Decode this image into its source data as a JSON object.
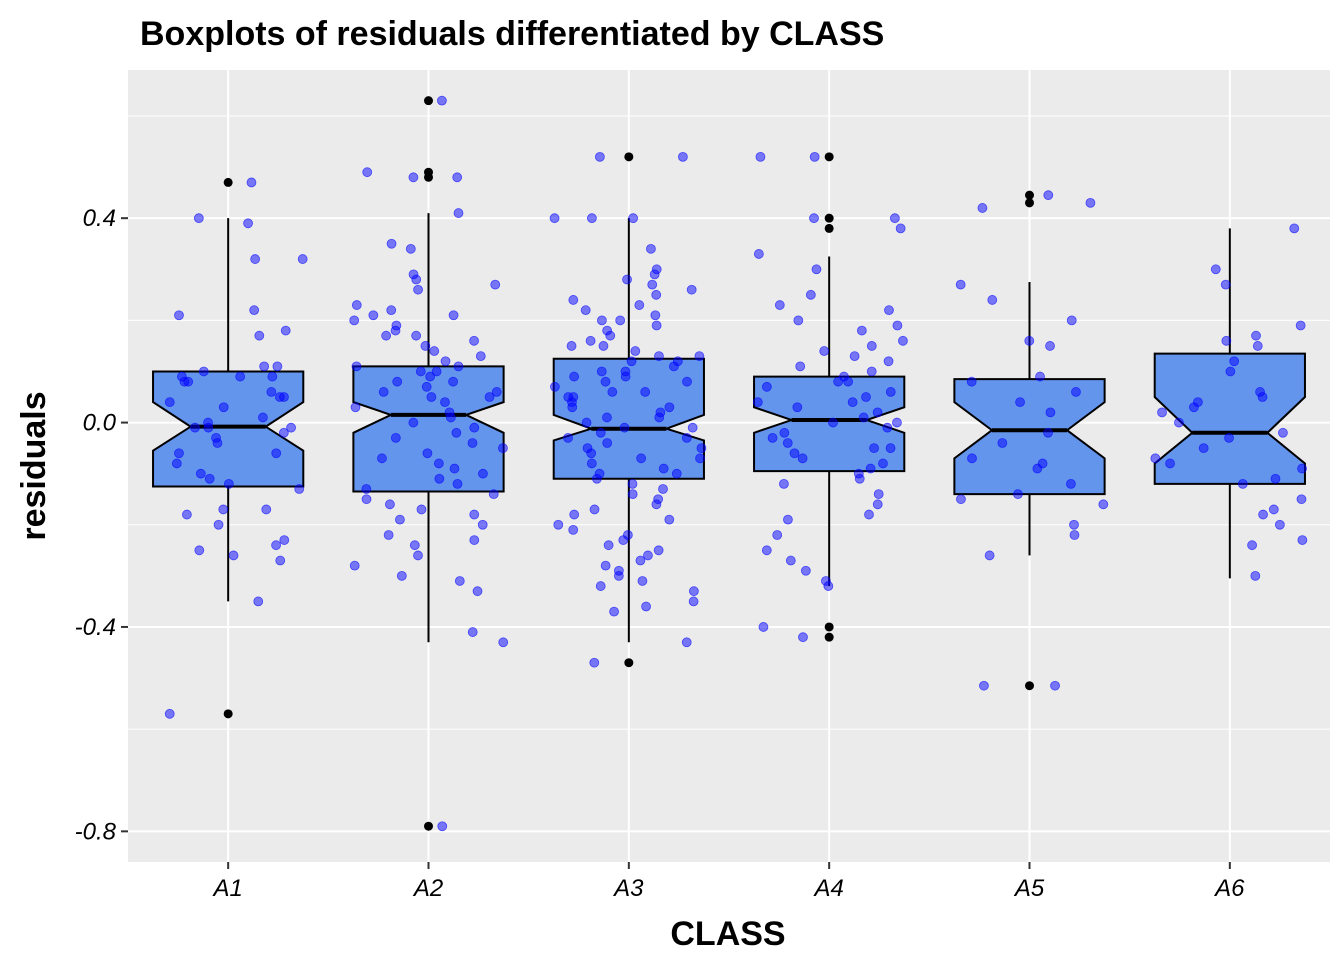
{
  "chart_data": {
    "type": "boxplot",
    "title": "Boxplots of residuals differentiated by CLASS",
    "xlabel": "CLASS",
    "ylabel": "residuals",
    "categories": [
      "A1",
      "A2",
      "A3",
      "A4",
      "A5",
      "A6"
    ],
    "yticks": [
      0.4,
      0.0,
      -0.4,
      -0.8
    ],
    "yticklabels": [
      "0.4",
      "0.0",
      "-0.4",
      "-0.8"
    ],
    "ylim": [
      -0.86,
      0.69
    ],
    "grid": true,
    "notched": true,
    "colors": {
      "panel": "#ebebeb",
      "grid": "#ffffff",
      "box_fill": "#6495ed",
      "box_line": "#000000",
      "points": "#0000ff",
      "outliers": "#000000"
    },
    "boxes": [
      {
        "category": "A1",
        "whisker_low": -0.35,
        "q1": -0.125,
        "median": -0.008,
        "q3": 0.1,
        "whisker_high": 0.4,
        "notch_low": -0.055,
        "notch_high": 0.04,
        "outliers": [
          0.47,
          -0.57
        ]
      },
      {
        "category": "A2",
        "whisker_low": -0.43,
        "q1": -0.135,
        "median": 0.015,
        "q3": 0.11,
        "whisker_high": 0.41,
        "notch_low": -0.02,
        "notch_high": 0.04,
        "outliers": [
          0.63,
          0.49,
          0.48,
          -0.79
        ]
      },
      {
        "category": "A3",
        "whisker_low": -0.43,
        "q1": -0.11,
        "median": -0.012,
        "q3": 0.125,
        "whisker_high": 0.4,
        "notch_low": -0.035,
        "notch_high": 0.015,
        "outliers": [
          0.52,
          -0.47
        ]
      },
      {
        "category": "A4",
        "whisker_low": -0.32,
        "q1": -0.095,
        "median": 0.005,
        "q3": 0.09,
        "whisker_high": 0.325,
        "notch_low": -0.02,
        "notch_high": 0.03,
        "outliers": [
          0.52,
          0.4,
          0.38,
          -0.4,
          -0.42
        ]
      },
      {
        "category": "A5",
        "whisker_low": -0.26,
        "q1": -0.14,
        "median": -0.015,
        "q3": 0.085,
        "whisker_high": 0.275,
        "notch_low": -0.07,
        "notch_high": 0.04,
        "outliers": [
          0.445,
          0.43,
          -0.515
        ]
      },
      {
        "category": "A6",
        "whisker_low": -0.305,
        "q1": -0.12,
        "median": -0.02,
        "q3": 0.135,
        "whisker_high": 0.38,
        "notch_low": -0.08,
        "notch_high": 0.05,
        "outliers": []
      }
    ],
    "jitter_points": [
      {
        "category": "A1",
        "y": [
          0.47,
          0.4,
          0.39,
          0.32,
          0.32,
          0.22,
          0.21,
          0.18,
          0.17,
          0.11,
          0.11,
          0.1,
          0.09,
          0.09,
          0.09,
          0.08,
          0.08,
          0.06,
          0.05,
          0.05,
          0.04,
          0.03,
          0.01,
          0.0,
          -0.01,
          -0.01,
          -0.01,
          -0.02,
          -0.03,
          -0.04,
          -0.06,
          -0.06,
          -0.08,
          -0.1,
          -0.11,
          -0.12,
          -0.13,
          -0.17,
          -0.17,
          -0.18,
          -0.2,
          -0.23,
          -0.24,
          -0.25,
          -0.26,
          -0.27,
          -0.35,
          -0.57
        ]
      },
      {
        "category": "A2",
        "y": [
          0.63,
          0.49,
          0.48,
          0.48,
          0.41,
          0.35,
          0.34,
          0.29,
          0.28,
          0.27,
          0.26,
          0.23,
          0.22,
          0.21,
          0.21,
          0.2,
          0.19,
          0.18,
          0.17,
          0.17,
          0.16,
          0.15,
          0.14,
          0.13,
          0.12,
          0.11,
          0.11,
          0.1,
          0.1,
          0.09,
          0.08,
          0.08,
          0.07,
          0.06,
          0.06,
          0.05,
          0.05,
          0.04,
          0.03,
          0.02,
          0.01,
          0.0,
          -0.01,
          -0.02,
          -0.03,
          -0.04,
          -0.05,
          -0.06,
          -0.07,
          -0.08,
          -0.09,
          -0.1,
          -0.11,
          -0.12,
          -0.13,
          -0.14,
          -0.15,
          -0.16,
          -0.17,
          -0.18,
          -0.19,
          -0.2,
          -0.22,
          -0.23,
          -0.24,
          -0.26,
          -0.28,
          -0.3,
          -0.31,
          -0.33,
          -0.41,
          -0.43,
          -0.79
        ]
      },
      {
        "category": "A3",
        "y": [
          0.52,
          0.52,
          0.4,
          0.4,
          0.4,
          0.34,
          0.3,
          0.29,
          0.28,
          0.27,
          0.26,
          0.25,
          0.24,
          0.23,
          0.22,
          0.21,
          0.2,
          0.2,
          0.19,
          0.18,
          0.17,
          0.16,
          0.15,
          0.15,
          0.14,
          0.13,
          0.13,
          0.12,
          0.12,
          0.11,
          0.1,
          0.1,
          0.09,
          0.09,
          0.08,
          0.08,
          0.07,
          0.06,
          0.06,
          0.05,
          0.05,
          0.04,
          0.03,
          0.03,
          0.02,
          0.01,
          0.01,
          0.0,
          -0.01,
          -0.01,
          -0.02,
          -0.03,
          -0.03,
          -0.04,
          -0.05,
          -0.05,
          -0.06,
          -0.07,
          -0.07,
          -0.08,
          -0.09,
          -0.1,
          -0.1,
          -0.11,
          -0.12,
          -0.13,
          -0.14,
          -0.15,
          -0.16,
          -0.17,
          -0.18,
          -0.19,
          -0.2,
          -0.21,
          -0.22,
          -0.23,
          -0.24,
          -0.25,
          -0.26,
          -0.27,
          -0.28,
          -0.29,
          -0.3,
          -0.31,
          -0.32,
          -0.33,
          -0.35,
          -0.36,
          -0.37,
          -0.43,
          -0.47
        ]
      },
      {
        "category": "A4",
        "y": [
          0.52,
          0.52,
          0.4,
          0.4,
          0.38,
          0.33,
          0.3,
          0.25,
          0.23,
          0.22,
          0.2,
          0.19,
          0.18,
          0.16,
          0.15,
          0.14,
          0.13,
          0.12,
          0.11,
          0.1,
          0.09,
          0.08,
          0.08,
          0.07,
          0.06,
          0.05,
          0.04,
          0.04,
          0.03,
          0.02,
          0.01,
          0.0,
          0.0,
          -0.01,
          -0.02,
          -0.03,
          -0.04,
          -0.05,
          -0.05,
          -0.06,
          -0.07,
          -0.08,
          -0.09,
          -0.1,
          -0.11,
          -0.12,
          -0.14,
          -0.16,
          -0.18,
          -0.19,
          -0.22,
          -0.25,
          -0.27,
          -0.29,
          -0.31,
          -0.32,
          -0.4,
          -0.42
        ]
      },
      {
        "category": "A5",
        "y": [
          0.445,
          0.43,
          0.42,
          0.27,
          0.24,
          0.2,
          0.16,
          0.15,
          0.09,
          0.08,
          0.06,
          0.04,
          0.02,
          -0.02,
          -0.04,
          -0.07,
          -0.08,
          -0.09,
          -0.12,
          -0.14,
          -0.15,
          -0.16,
          -0.2,
          -0.22,
          -0.26,
          -0.515,
          -0.515
        ]
      },
      {
        "category": "A6",
        "y": [
          0.38,
          0.3,
          0.27,
          0.19,
          0.17,
          0.16,
          0.15,
          0.12,
          0.1,
          0.06,
          0.05,
          0.04,
          0.03,
          0.02,
          0.0,
          -0.02,
          -0.03,
          -0.05,
          -0.07,
          -0.08,
          -0.09,
          -0.11,
          -0.12,
          -0.15,
          -0.17,
          -0.18,
          -0.2,
          -0.23,
          -0.24,
          -0.3
        ]
      }
    ]
  }
}
